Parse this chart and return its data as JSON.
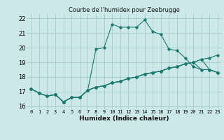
{
  "title": "Courbe de l'humidex pour Zeebrugge",
  "xlabel": "Humidex (Indice chaleur)",
  "bg_color": "#cce8e8",
  "grid_color": "#aacfcf",
  "line_color": "#1a7a6e",
  "xlim": [
    -0.5,
    23.5
  ],
  "ylim": [
    15.8,
    22.3
  ],
  "xticks": [
    0,
    1,
    2,
    3,
    4,
    5,
    6,
    7,
    8,
    9,
    10,
    11,
    12,
    13,
    14,
    15,
    16,
    17,
    18,
    19,
    20,
    21,
    22,
    23
  ],
  "yticks": [
    16,
    17,
    18,
    19,
    20,
    21,
    22
  ],
  "series": [
    [
      17.2,
      16.9,
      16.7,
      16.8,
      16.3,
      16.6,
      16.6,
      17.1,
      19.9,
      20.0,
      21.6,
      21.4,
      21.4,
      21.4,
      21.9,
      21.1,
      20.9,
      19.9,
      19.8,
      19.3,
      18.7,
      18.5,
      18.5,
      18.3
    ],
    [
      17.2,
      16.9,
      16.7,
      16.8,
      16.3,
      16.6,
      16.6,
      17.1,
      17.3,
      17.4,
      17.6,
      17.7,
      17.9,
      18.0,
      18.2,
      18.3,
      18.4,
      18.6,
      18.7,
      18.9,
      19.0,
      19.2,
      19.3,
      19.5
    ],
    [
      17.2,
      16.9,
      16.7,
      16.8,
      16.3,
      16.6,
      16.6,
      17.1,
      17.3,
      17.4,
      17.6,
      17.7,
      17.9,
      18.0,
      18.2,
      18.3,
      18.4,
      18.6,
      18.7,
      18.9,
      19.0,
      18.5,
      18.5,
      18.3
    ],
    [
      17.2,
      16.9,
      16.7,
      16.8,
      16.3,
      16.6,
      16.6,
      17.1,
      17.3,
      17.4,
      17.6,
      17.7,
      17.9,
      18.0,
      18.2,
      18.3,
      18.4,
      18.6,
      18.7,
      18.9,
      19.0,
      19.2,
      18.5,
      18.3
    ]
  ]
}
